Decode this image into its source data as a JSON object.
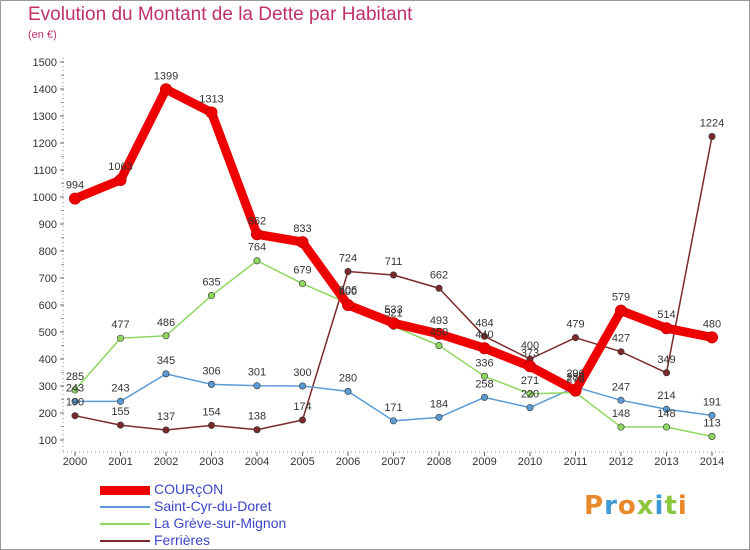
{
  "header": {
    "title": "Evolution du Montant de la Dette par Habitant",
    "subtitle": "(en €)"
  },
  "logo": {
    "text": "Proxiti"
  },
  "colors": {
    "title": "#c0306a",
    "COURÇON": "#ee0000",
    "Saint-Cyr-du-Doret": "#5b9bd5",
    "La Grève-sur-Mignon": "#8fd860",
    "Ferrières": "#7a2a2a"
  },
  "chart_data": {
    "type": "line",
    "title": "Evolution du Montant de la Dette par Habitant",
    "ylabel": "(en €)",
    "xlabel": "",
    "ylim": [
      100,
      1500
    ],
    "yticks": [
      100,
      200,
      300,
      400,
      500,
      600,
      700,
      800,
      900,
      1000,
      1100,
      1200,
      1300,
      1400,
      1500
    ],
    "grid": false,
    "legend_position": "bottom-left",
    "x": [
      "2000",
      "2001",
      "2002",
      "2003",
      "2004",
      "2005",
      "2006",
      "2007",
      "2008",
      "2009",
      "2010",
      "2011",
      "2012",
      "2013",
      "2014"
    ],
    "series": [
      {
        "name": "COURçON",
        "color": "#ee0000",
        "values": [
          994,
          1063,
          1399,
          1313,
          862,
          833,
          600,
          533,
          493,
          440,
          373,
          283,
          579,
          514,
          480
        ]
      },
      {
        "name": "Saint-Cyr-du-Doret",
        "color": "#5b9bd5",
        "values": [
          243,
          243,
          345,
          306,
          301,
          300,
          280,
          171,
          184,
          258,
          220,
          296,
          247,
          214,
          191
        ]
      },
      {
        "name": "La Grève-sur-Mignon",
        "color": "#8fd860",
        "values": [
          285,
          477,
          486,
          635,
          764,
          679,
          606,
          521,
          450,
          336,
          271,
          276,
          148,
          148,
          113
        ]
      },
      {
        "name": "Ferrières",
        "color": "#7a2a2a",
        "values": [
          190,
          155,
          137,
          154,
          138,
          174,
          724,
          711,
          662,
          484,
          400,
          479,
          427,
          349,
          1224
        ]
      }
    ]
  }
}
